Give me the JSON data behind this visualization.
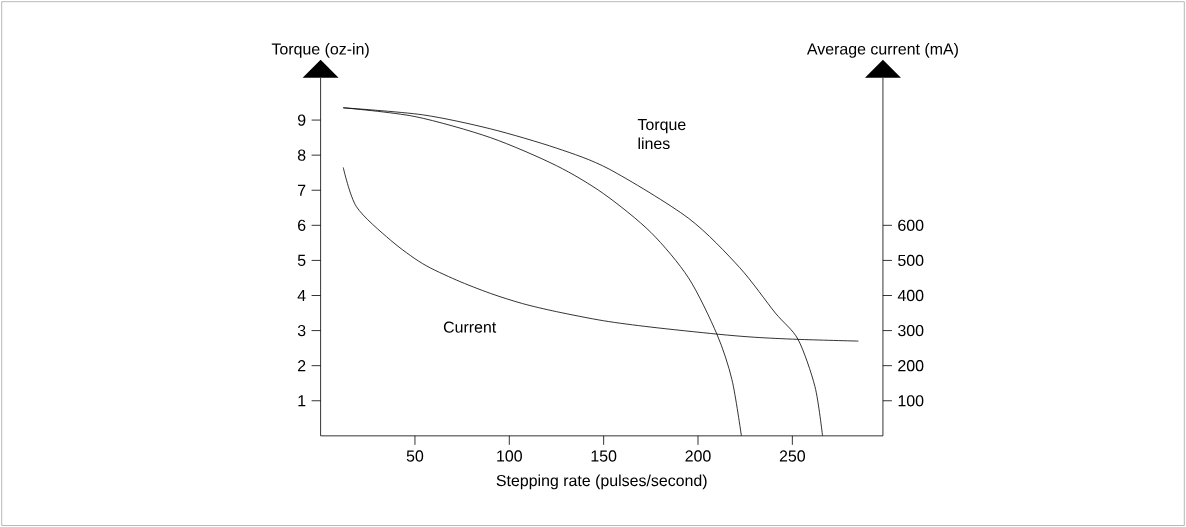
{
  "chart_data": {
    "type": "line",
    "xlabel": "Stepping rate (pulses/second)",
    "ylabel": "Torque (oz-in)",
    "y2label": "Average current (mA)",
    "annotations": [
      "Torque lines",
      "Current"
    ],
    "x": [
      12,
      50,
      90,
      125,
      150,
      175,
      195,
      210,
      218,
      223
    ],
    "xlim": [
      0,
      298
    ],
    "ylim": [
      0,
      10.2
    ],
    "y2lim": [
      0,
      1020
    ],
    "xticks": [
      50,
      100,
      150,
      200,
      250
    ],
    "yticks": [
      1,
      2,
      3,
      4,
      5,
      6,
      7,
      8,
      9
    ],
    "y2ticks": [
      100,
      200,
      300,
      400,
      500,
      600
    ],
    "series": [
      {
        "color": "#000000",
        "values": [
          9.35,
          9.1,
          8.5,
          7.7,
          6.9,
          5.8,
          4.5,
          2.9,
          1.6,
          0
        ]
      },
      {
        "color": "#000000",
        "x": [
          12,
          54,
          90,
          125,
          153,
          195,
          222,
          241,
          253,
          262,
          266
        ],
        "values": [
          9.35,
          9.15,
          8.75,
          8.2,
          7.6,
          6.2,
          4.8,
          3.5,
          2.75,
          1.4,
          0
        ]
      },
      {
        "color": "#000000",
        "axis": "y2",
        "x": [
          12,
          19,
          37,
          54,
          72,
          90,
          107,
          125,
          150,
          175,
          210,
          230,
          253,
          285
        ],
        "values": [
          765,
          653,
          558,
          491,
          444,
          406,
          377,
          354,
          328,
          310,
          290,
          281,
          275,
          270
        ]
      }
    ]
  }
}
